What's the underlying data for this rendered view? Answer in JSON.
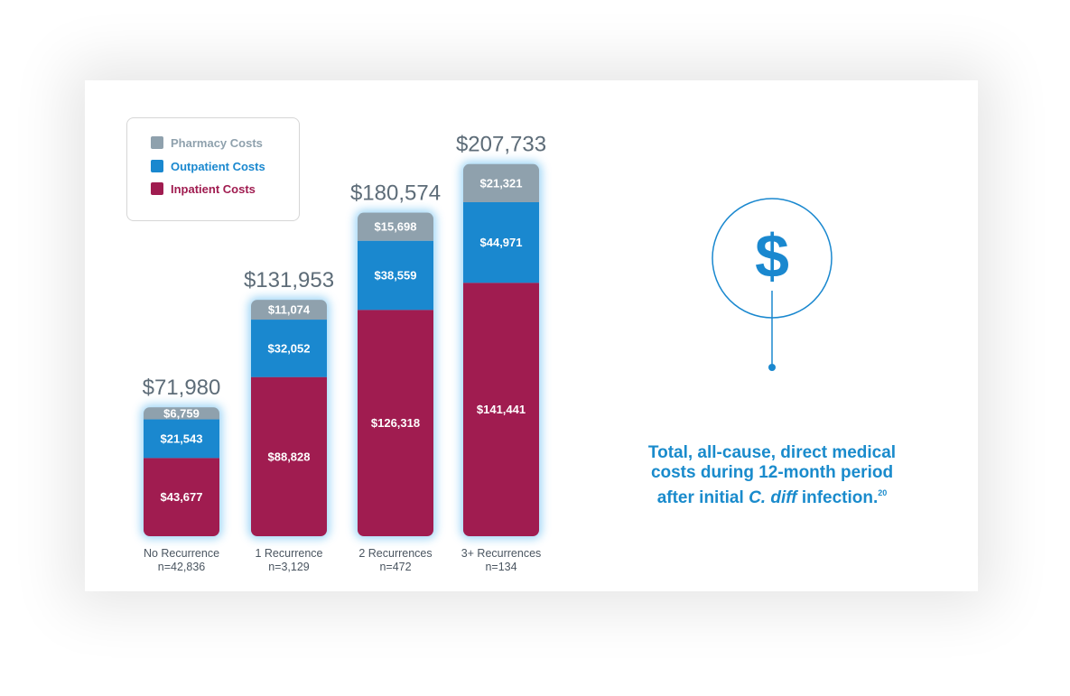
{
  "chart_data": {
    "type": "bar",
    "stacked": true,
    "categories": [
      "No Recurrence",
      "1 Recurrence",
      "2 Recurrences",
      "3+ Recurrences"
    ],
    "category_n": [
      "n=42,836",
      "n=3,129",
      "n=472",
      "n=134"
    ],
    "series": [
      {
        "name": "Inpatient Costs",
        "color": "#a01c50",
        "values": [
          43677,
          88828,
          126318,
          141441
        ],
        "labels": [
          "$43,677",
          "$88,828",
          "$126,318",
          "$141,441"
        ]
      },
      {
        "name": "Outpatient Costs",
        "color": "#1a88cf",
        "values": [
          21543,
          32052,
          38559,
          44971
        ],
        "labels": [
          "$21,543",
          "$32,052",
          "$38,559",
          "$44,971"
        ]
      },
      {
        "name": "Pharmacy Costs",
        "color": "#8fa1ad",
        "values": [
          6759,
          11074,
          15698,
          21321
        ],
        "labels": [
          "$6,759",
          "$11,074",
          "$15,698",
          "$21,321"
        ]
      }
    ],
    "totals": [
      71980,
      131953,
      180574,
      207733
    ],
    "total_labels": [
      "$71,980",
      "$131,953",
      "$180,574",
      "$207,733"
    ],
    "legend_placement": "top-left",
    "grid": false
  },
  "legend": {
    "items": [
      {
        "label": "Pharmacy Costs",
        "color": "#8fa1ad"
      },
      {
        "label": "Outpatient Costs",
        "color": "#1a88cf"
      },
      {
        "label": "Inpatient Costs",
        "color": "#a01c50"
      }
    ]
  },
  "icon": {
    "name": "dollar-icon",
    "glyph": "$",
    "color": "#1a88cf"
  },
  "caption": {
    "line1": "Total, all-cause, direct medical",
    "line2": "costs during 12-month period",
    "line3_pre": "after initial ",
    "line3_italic": "C. diff",
    "line3_post": " infection.",
    "superscript": "20"
  }
}
